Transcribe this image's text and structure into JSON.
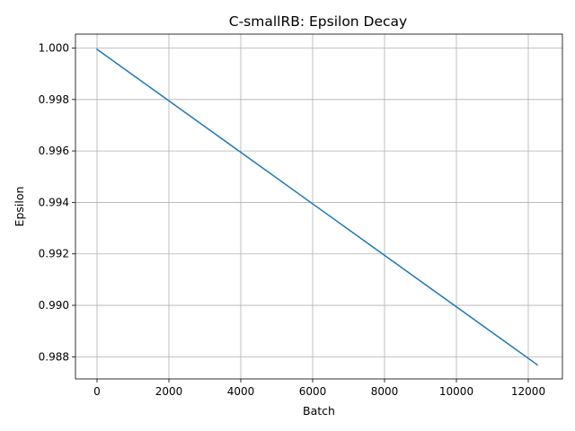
{
  "chart_data": {
    "type": "line",
    "title": "C-smallRB: Epsilon Decay",
    "xlabel": "Batch",
    "ylabel": "Epsilon",
    "xlim": [
      -600,
      12950
    ],
    "ylim": [
      0.98714,
      1.00054
    ],
    "xticks": [
      0,
      2000,
      4000,
      6000,
      8000,
      10000,
      12000
    ],
    "xtick_labels": [
      "0",
      "2000",
      "4000",
      "6000",
      "8000",
      "10000",
      "12000"
    ],
    "yticks": [
      0.988,
      0.99,
      0.992,
      0.994,
      0.996,
      0.998,
      1.0
    ],
    "ytick_labels": [
      "0.988",
      "0.990",
      "0.992",
      "0.994",
      "0.996",
      "0.998",
      "1.000"
    ],
    "grid": true,
    "series": [
      {
        "color": "#1f77b4",
        "x": [
          0,
          12250
        ],
        "y": [
          0.99995,
          0.98769
        ]
      }
    ]
  }
}
